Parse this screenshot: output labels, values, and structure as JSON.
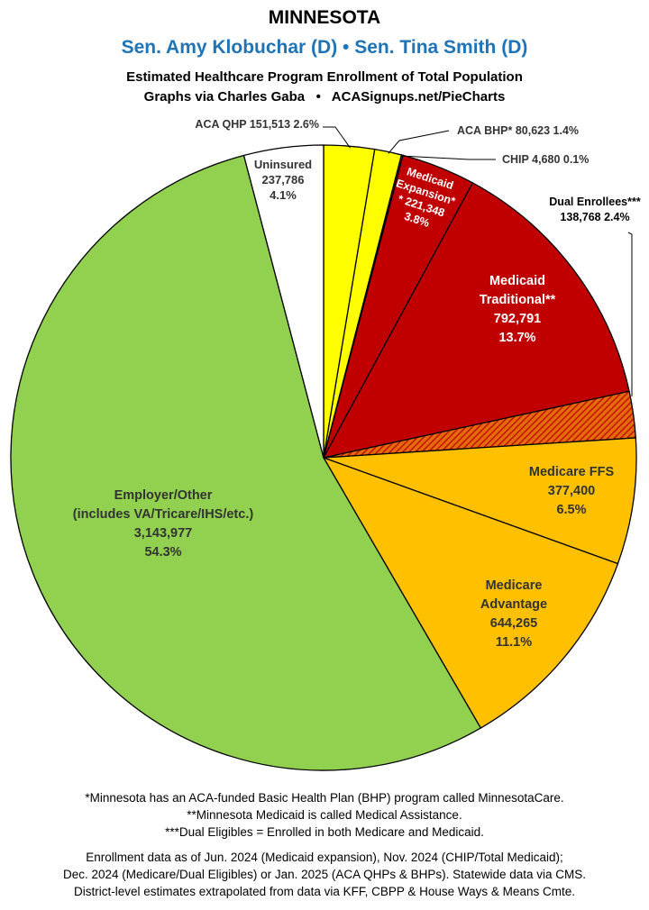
{
  "header": {
    "state": "MINNESOTA",
    "senators": "Sen. Amy Klobuchar (D) • Sen. Tina Smith (D)",
    "subtitle": "Estimated Healthcare Program Enrollment of Total Population",
    "credit": "Graphs via Charles Gaba   •   ACASignups.net/PieCharts"
  },
  "colors": {
    "aca_qhp": "#ffff00",
    "aca_bhp": "#ffff00",
    "chip": "#c00000",
    "medicaid_expansion": "#c00000",
    "medicaid_traditional": "#c00000",
    "dual": "#e26b0a",
    "medicare_ffs": "#ffc000",
    "medicare_advantage": "#ffc000",
    "employer": "#92d050",
    "uninsured": "#ffffff",
    "senators": "#1f73b7"
  },
  "chart_data": {
    "type": "pie",
    "start": "12 o'clock, clockwise",
    "slices": [
      {
        "key": "aca_qhp",
        "label": "ACA QHP",
        "value": 151513,
        "percent": "2.6%",
        "color": "#ffff00"
      },
      {
        "key": "aca_bhp",
        "label": "ACA BHP*",
        "value": 80623,
        "percent": "1.4%",
        "color": "#ffff00"
      },
      {
        "key": "chip",
        "label": "CHIP",
        "value": 4680,
        "percent": "0.1%",
        "color": "#c00000"
      },
      {
        "key": "medicaid_expansion",
        "label": "Medicaid Expansion*",
        "value": 221348,
        "percent": "3.8%",
        "color": "#c00000"
      },
      {
        "key": "medicaid_traditional",
        "label": "Medicaid Traditional**",
        "value": 792791,
        "percent": "13.7%",
        "color": "#c00000"
      },
      {
        "key": "dual",
        "label": "Dual Enrollees***",
        "value": 138768,
        "percent": "2.4%",
        "color": "#e26b0a",
        "pattern": "hatched"
      },
      {
        "key": "medicare_ffs",
        "label": "Medicare FFS",
        "value": 377400,
        "percent": "6.5%",
        "color": "#ffc000"
      },
      {
        "key": "medicare_advantage",
        "label": "Medicare Advantage",
        "value": 644265,
        "percent": "11.1%",
        "color": "#ffc000"
      },
      {
        "key": "employer",
        "label": "Employer/Other (includes VA/Tricare/IHS/etc.)",
        "value": 3143977,
        "percent": "54.3%",
        "color": "#92d050"
      },
      {
        "key": "uninsured",
        "label": "Uninsured",
        "value": 237786,
        "percent": "4.1%",
        "color": "#ffffff"
      }
    ],
    "labels": {
      "aca_qhp": "ACA QHP 151,513 2.6%",
      "aca_bhp": "ACA BHP* 80,623 1.4%",
      "chip": "CHIP 4,680 0.1%",
      "medicaid_expansion": [
        "Medicaid",
        "Expansion*",
        "* 221,348",
        "3.8%"
      ],
      "medicaid_traditional": [
        "Medicaid",
        "Traditional**",
        "792,791",
        "13.7%"
      ],
      "dual": [
        "Dual Enrollees***",
        "138,768 2.4%"
      ],
      "medicare_ffs": [
        "Medicare FFS",
        "377,400",
        "6.5%"
      ],
      "medicare_advantage": [
        "Medicare",
        "Advantage",
        "644,265",
        "11.1%"
      ],
      "employer": [
        "Employer/Other",
        "(includes VA/Tricare/IHS/etc.)",
        "3,143,977",
        "54.3%"
      ],
      "uninsured": [
        "Uninsured",
        "237,786",
        "4.1%"
      ]
    }
  },
  "footnotes": {
    "note1": "*Minnesota has an ACA-funded Basic Health Plan (BHP) program called MinnesotaCare.",
    "note2": "**Minnesota Medicaid is called Medical Assistance.",
    "note3": "***Dual Eligibles = Enrolled in both Medicare and Medicaid.",
    "source1": "Enrollment data as of Jun. 2024 (Medicaid expansion), Nov. 2024 (CHIP/Total Medicaid);",
    "source2": "Dec. 2024 (Medicare/Dual Eligibles) or Jan. 2025 (ACA QHPs & BHPs). Statewide data via CMS.",
    "source3": "District-level estimates extrapolated from data via KFF, CBPP & House Ways & Means Cmte."
  }
}
